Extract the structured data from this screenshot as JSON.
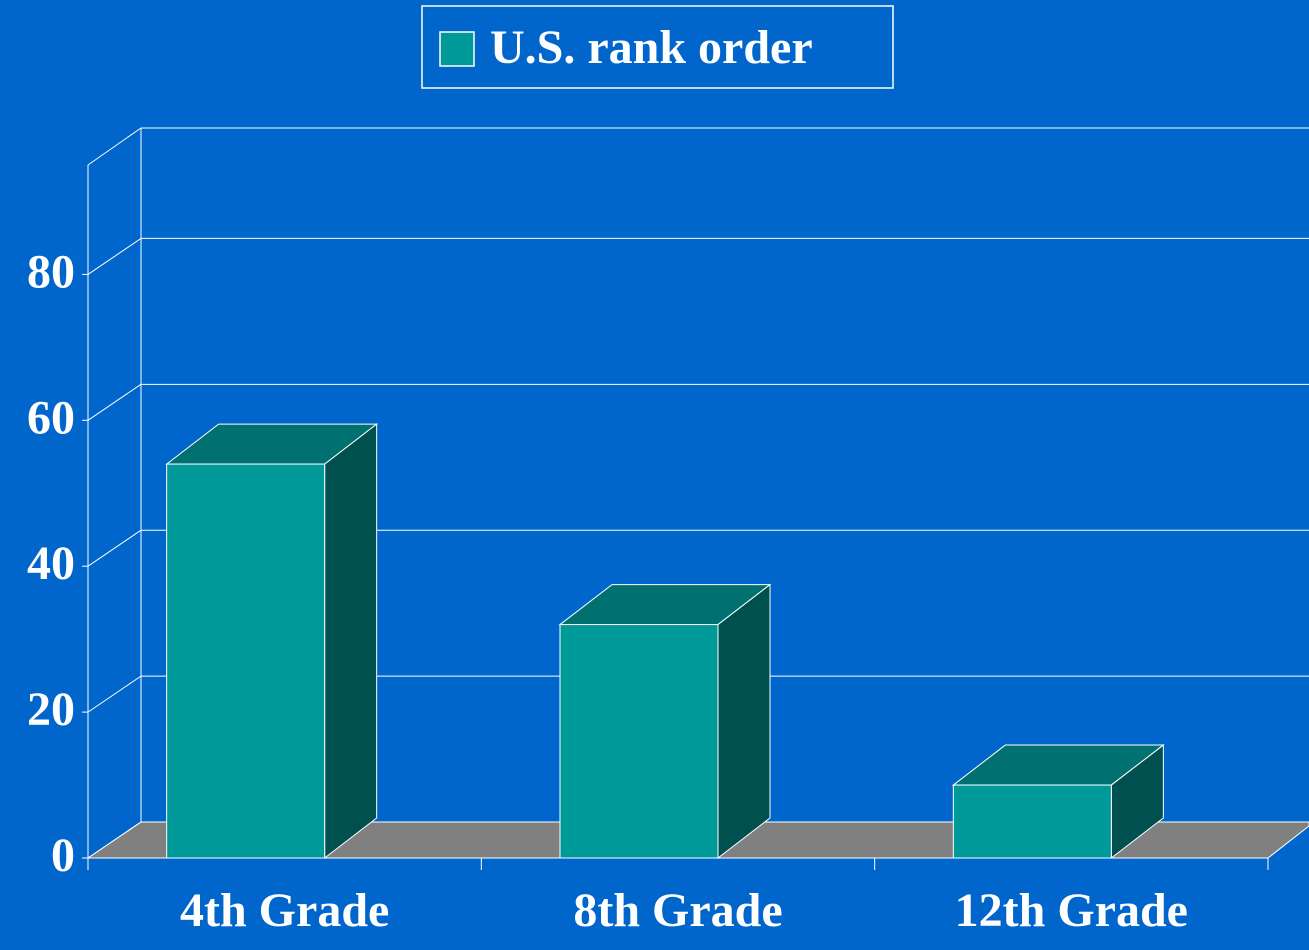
{
  "chart_data": {
    "type": "bar3d",
    "legend_position": "top",
    "categories": [
      "4th Grade",
      "8th Grade",
      "12th Grade"
    ],
    "series": [
      {
        "name": "U.S. rank order",
        "color": "#009999",
        "values": [
          54,
          32,
          10
        ]
      }
    ],
    "ylim": [
      0,
      95
    ],
    "yticks": [
      0,
      20,
      40,
      60,
      80
    ],
    "grid": true
  }
}
